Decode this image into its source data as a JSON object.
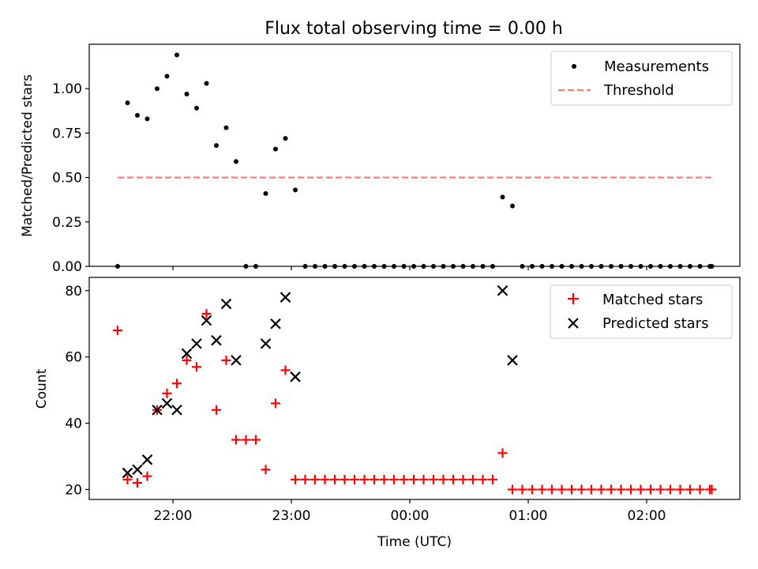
{
  "title": "Flux total observing time = 0.00 h",
  "chart_data": [
    {
      "type": "scatter",
      "ylabel": "Matched/Predicted stars",
      "xlabel": "",
      "ylim": [
        0,
        1.25
      ],
      "yticks": [
        0.0,
        0.25,
        0.5,
        0.75,
        1.0
      ],
      "ytick_labels": [
        "0.00",
        "0.25",
        "0.50",
        "0.75",
        "1.00"
      ],
      "legend_position": "top-right",
      "series": [
        {
          "name": "Measurements",
          "marker": "dot",
          "color": "#000000",
          "points": [
            [
              "21:32",
              0.0
            ],
            [
              "21:37",
              0.92
            ],
            [
              "21:42",
              0.85
            ],
            [
              "21:47",
              0.83
            ],
            [
              "21:52",
              1.0
            ],
            [
              "21:57",
              1.07
            ],
            [
              "22:02",
              1.19
            ],
            [
              "22:07",
              0.97
            ],
            [
              "22:12",
              0.89
            ],
            [
              "22:17",
              1.03
            ],
            [
              "22:22",
              0.68
            ],
            [
              "22:27",
              0.78
            ],
            [
              "22:32",
              0.59
            ],
            [
              "22:37",
              0.0
            ],
            [
              "22:42",
              0.0
            ],
            [
              "22:47",
              0.41
            ],
            [
              "22:52",
              0.66
            ],
            [
              "22:57",
              0.72
            ],
            [
              "23:02",
              0.43
            ],
            [
              "23:07",
              0.0
            ],
            [
              "23:12",
              0.0
            ],
            [
              "23:17",
              0.0
            ],
            [
              "23:22",
              0.0
            ],
            [
              "23:27",
              0.0
            ],
            [
              "23:32",
              0.0
            ],
            [
              "23:37",
              0.0
            ],
            [
              "23:42",
              0.0
            ],
            [
              "23:47",
              0.0
            ],
            [
              "23:52",
              0.0
            ],
            [
              "23:57",
              0.0
            ],
            [
              "00:02",
              0.0
            ],
            [
              "00:07",
              0.0
            ],
            [
              "00:12",
              0.0
            ],
            [
              "00:17",
              0.0
            ],
            [
              "00:22",
              0.0
            ],
            [
              "00:27",
              0.0
            ],
            [
              "00:32",
              0.0
            ],
            [
              "00:37",
              0.0
            ],
            [
              "00:42",
              0.0
            ],
            [
              "00:47",
              0.39
            ],
            [
              "00:52",
              0.34
            ],
            [
              "00:57",
              0.0
            ],
            [
              "01:02",
              0.0
            ],
            [
              "01:07",
              0.0
            ],
            [
              "01:12",
              0.0
            ],
            [
              "01:17",
              0.0
            ],
            [
              "01:22",
              0.0
            ],
            [
              "01:27",
              0.0
            ],
            [
              "01:32",
              0.0
            ],
            [
              "01:37",
              0.0
            ],
            [
              "01:42",
              0.0
            ],
            [
              "01:47",
              0.0
            ],
            [
              "01:52",
              0.0
            ],
            [
              "01:57",
              0.0
            ],
            [
              "02:02",
              0.0
            ],
            [
              "02:07",
              0.0
            ],
            [
              "02:12",
              0.0
            ],
            [
              "02:17",
              0.0
            ],
            [
              "02:22",
              0.0
            ],
            [
              "02:27",
              0.0
            ],
            [
              "02:32",
              0.0
            ],
            [
              "02:33",
              0.0
            ]
          ]
        },
        {
          "name": "Threshold",
          "marker": "dashed-line",
          "color": "#ff7b7b",
          "points": [
            [
              "21:32",
              0.5
            ],
            [
              "02:33",
              0.5
            ]
          ]
        }
      ]
    },
    {
      "type": "scatter",
      "ylabel": "Count",
      "xlabel": "Time (UTC)",
      "ylim": [
        17,
        84
      ],
      "yticks": [
        20,
        40,
        60,
        80
      ],
      "ytick_labels": [
        "20",
        "40",
        "60",
        "80"
      ],
      "xticks": [
        "22:00",
        "23:00",
        "00:00",
        "01:00",
        "02:00"
      ],
      "legend_position": "top-right",
      "series": [
        {
          "name": "Matched stars",
          "marker": "plus",
          "color": "#ff0000",
          "points": [
            [
              "21:32",
              68
            ],
            [
              "21:37",
              23
            ],
            [
              "21:42",
              22
            ],
            [
              "21:47",
              24
            ],
            [
              "21:52",
              44
            ],
            [
              "21:57",
              49
            ],
            [
              "22:02",
              52
            ],
            [
              "22:07",
              59
            ],
            [
              "22:12",
              57
            ],
            [
              "22:17",
              73
            ],
            [
              "22:22",
              44
            ],
            [
              "22:27",
              59
            ],
            [
              "22:32",
              35
            ],
            [
              "22:37",
              35
            ],
            [
              "22:42",
              35
            ],
            [
              "22:47",
              26
            ],
            [
              "22:52",
              46
            ],
            [
              "22:57",
              56
            ],
            [
              "23:02",
              23
            ],
            [
              "23:07",
              23
            ],
            [
              "23:12",
              23
            ],
            [
              "23:17",
              23
            ],
            [
              "23:22",
              23
            ],
            [
              "23:27",
              23
            ],
            [
              "23:32",
              23
            ],
            [
              "23:37",
              23
            ],
            [
              "23:42",
              23
            ],
            [
              "23:47",
              23
            ],
            [
              "23:52",
              23
            ],
            [
              "23:57",
              23
            ],
            [
              "00:02",
              23
            ],
            [
              "00:07",
              23
            ],
            [
              "00:12",
              23
            ],
            [
              "00:17",
              23
            ],
            [
              "00:22",
              23
            ],
            [
              "00:27",
              23
            ],
            [
              "00:32",
              23
            ],
            [
              "00:37",
              23
            ],
            [
              "00:42",
              23
            ],
            [
              "00:47",
              31
            ],
            [
              "00:52",
              20
            ],
            [
              "00:57",
              20
            ],
            [
              "01:02",
              20
            ],
            [
              "01:07",
              20
            ],
            [
              "01:12",
              20
            ],
            [
              "01:17",
              20
            ],
            [
              "01:22",
              20
            ],
            [
              "01:27",
              20
            ],
            [
              "01:32",
              20
            ],
            [
              "01:37",
              20
            ],
            [
              "01:42",
              20
            ],
            [
              "01:47",
              20
            ],
            [
              "01:52",
              20
            ],
            [
              "01:57",
              20
            ],
            [
              "02:02",
              20
            ],
            [
              "02:07",
              20
            ],
            [
              "02:12",
              20
            ],
            [
              "02:17",
              20
            ],
            [
              "02:22",
              20
            ],
            [
              "02:27",
              20
            ],
            [
              "02:32",
              20
            ],
            [
              "02:33",
              20
            ]
          ]
        },
        {
          "name": "Predicted stars",
          "marker": "x",
          "color": "#000000",
          "points": [
            [
              "21:37",
              25
            ],
            [
              "21:42",
              26
            ],
            [
              "21:47",
              29
            ],
            [
              "21:52",
              44
            ],
            [
              "21:57",
              46
            ],
            [
              "22:02",
              44
            ],
            [
              "22:07",
              61
            ],
            [
              "22:12",
              64
            ],
            [
              "22:17",
              71
            ],
            [
              "22:22",
              65
            ],
            [
              "22:27",
              76
            ],
            [
              "22:32",
              59
            ],
            [
              "22:47",
              64
            ],
            [
              "22:52",
              70
            ],
            [
              "22:57",
              78
            ],
            [
              "23:02",
              54
            ],
            [
              "00:47",
              80
            ],
            [
              "00:52",
              59
            ]
          ]
        }
      ]
    }
  ]
}
